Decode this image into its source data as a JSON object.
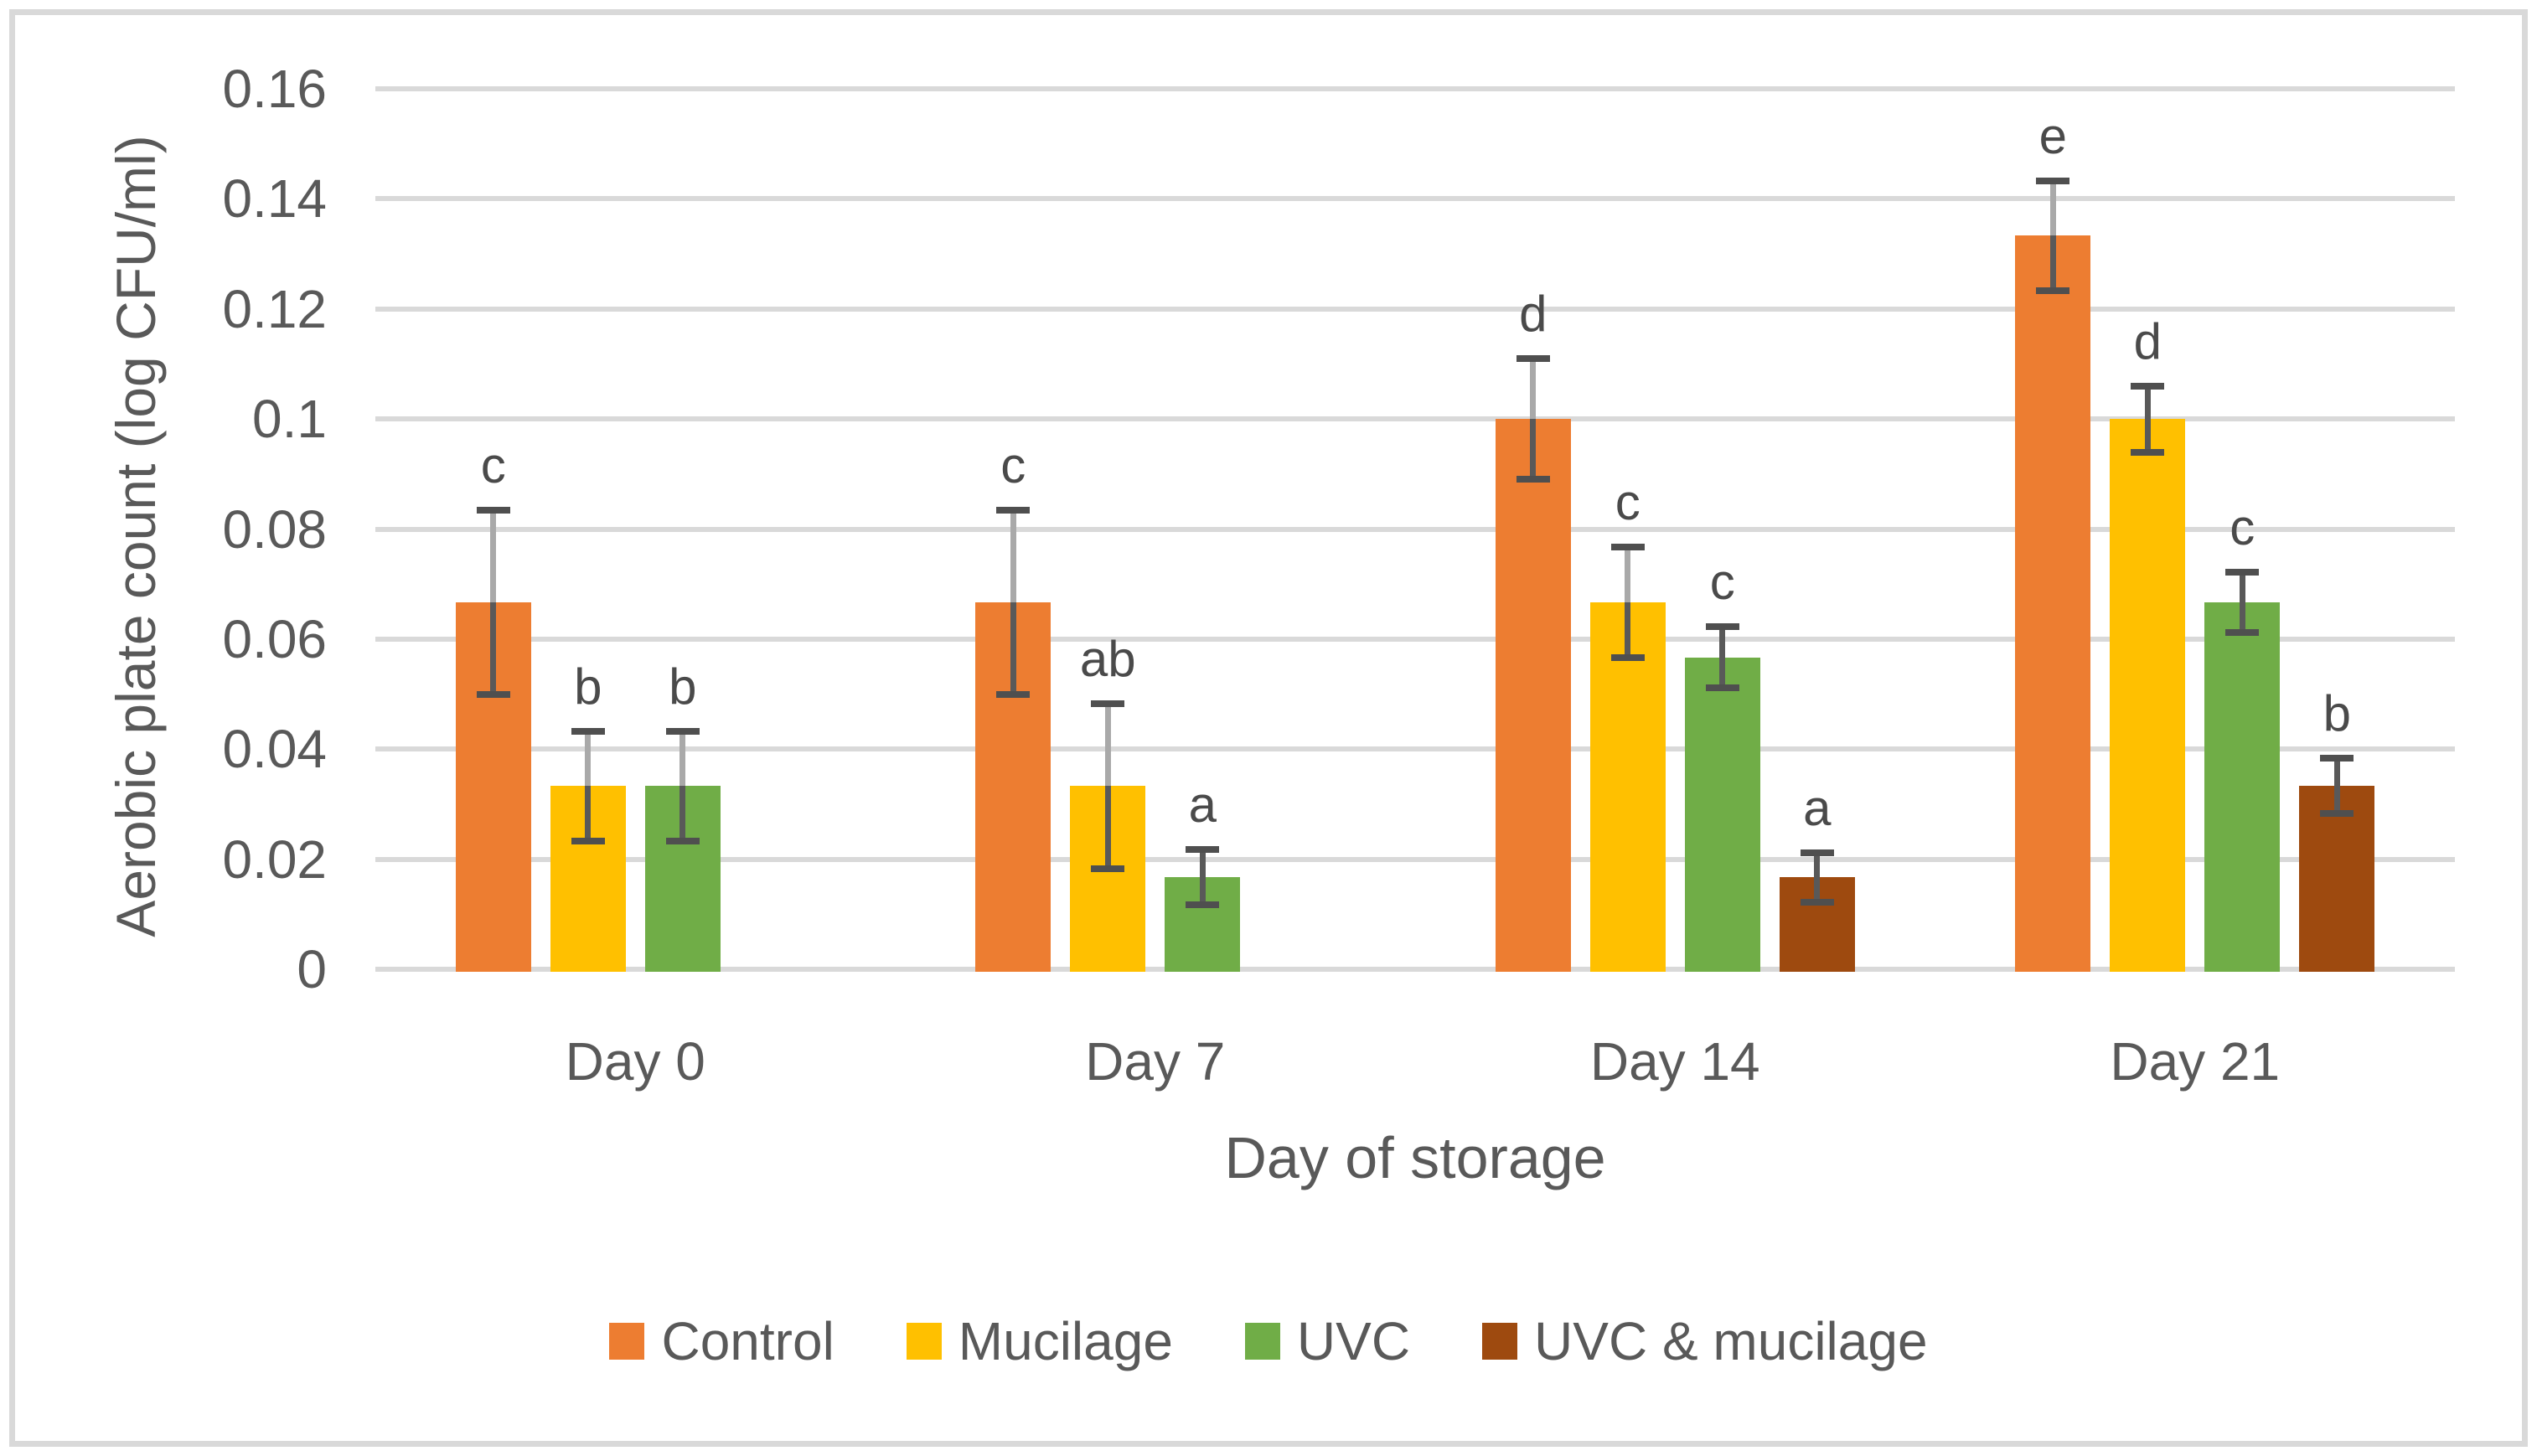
{
  "chart_data": {
    "type": "bar",
    "title": "",
    "xlabel": "Day of storage",
    "ylabel": "Aerobic plate count (log CFU/ml)",
    "categories": [
      "Day 0",
      "Day 7",
      "Day 14",
      "Day 21"
    ],
    "series": [
      {
        "name": "Control",
        "color": "#ED7D31",
        "values": [
          0.0667,
          0.0667,
          0.1,
          0.1333
        ],
        "errors": [
          0.0167,
          0.0167,
          0.011,
          0.01
        ],
        "letters": [
          "c",
          "c",
          "d",
          "e"
        ]
      },
      {
        "name": "Mucilage",
        "color": "#FFC000",
        "values": [
          0.0333,
          0.0333,
          0.0667,
          0.1
        ],
        "errors": [
          0.01,
          0.015,
          0.01,
          0.006
        ],
        "letters": [
          "b",
          "ab",
          "c",
          "d"
        ]
      },
      {
        "name": "UVC",
        "color": "#70AD47",
        "values": [
          0.0333,
          0.0167,
          0.0567,
          0.0667
        ],
        "errors": [
          0.01,
          0.005,
          0.0055,
          0.0055
        ],
        "letters": [
          "b",
          "a",
          "c",
          "c"
        ]
      },
      {
        "name": "UVC & mucilage",
        "color": "#9E4A0F",
        "values": [
          0,
          0,
          0.0167,
          0.0333
        ],
        "errors": [
          null,
          null,
          0.0045,
          0.005
        ],
        "letters": [
          "",
          "",
          "a",
          "b"
        ]
      }
    ],
    "ylim": [
      0,
      0.16
    ],
    "y_ticks": [
      0,
      0.02,
      0.04,
      0.06,
      0.08,
      0.1,
      0.12,
      0.14,
      0.16
    ],
    "y_tick_labels": [
      "0",
      "0.02",
      "0.04",
      "0.06",
      "0.08",
      "0.1",
      "0.12",
      "0.14",
      "0.16"
    ],
    "grid": "horizontal",
    "legend_position": "bottom"
  }
}
